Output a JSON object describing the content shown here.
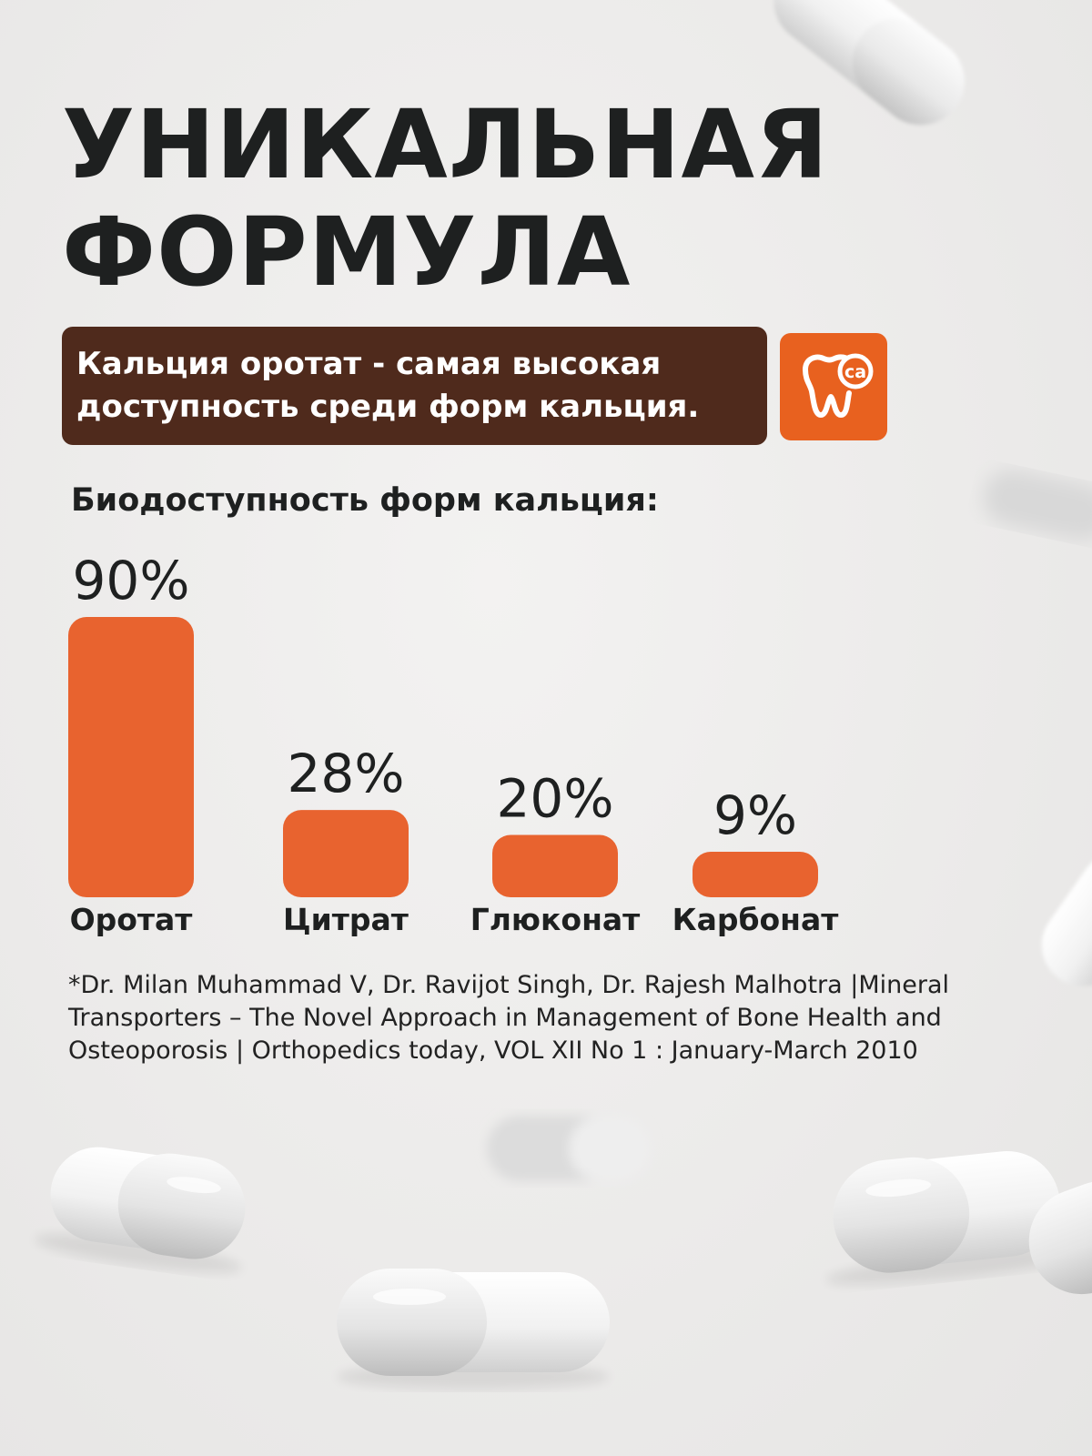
{
  "title": {
    "line1": "УНИКАЛЬНАЯ",
    "line2": "ФОРМУЛА"
  },
  "callout": {
    "line1": "Кальция оротат - самая высокая",
    "line2": "доступность среди форм кальция."
  },
  "badge": {
    "icon": "tooth-icon",
    "text": "ca",
    "color": "#e8611f"
  },
  "chart_data": {
    "type": "bar",
    "title": "Биодоступность форм кальция:",
    "categories": [
      "Оротат",
      "Цитрат",
      "Глюконат",
      "Карбонат"
    ],
    "values": [
      90,
      28,
      20,
      9
    ],
    "value_labels": [
      "90%",
      "28%",
      "20%",
      "9%"
    ],
    "unit": "%",
    "xlabel": "",
    "ylabel": "",
    "ylim": [
      0,
      90
    ],
    "bar_color": "#e8632f",
    "grid": false,
    "legend": "none"
  },
  "citation": {
    "line1": "*Dr. Milan Muhammad V, Dr. Ravijot Singh, Dr. Rajesh Malhotra |Mineral",
    "line2": "Transporters – The Novel Approach in Management of Bone Health and",
    "line3": "Osteoporosis | Orthopedics today, VOL XII No 1 : January-March 2010"
  },
  "colors": {
    "accent": "#e8632f",
    "callout_bg": "#4f2a1c",
    "text": "#1e2020",
    "background": "#ecebea"
  }
}
